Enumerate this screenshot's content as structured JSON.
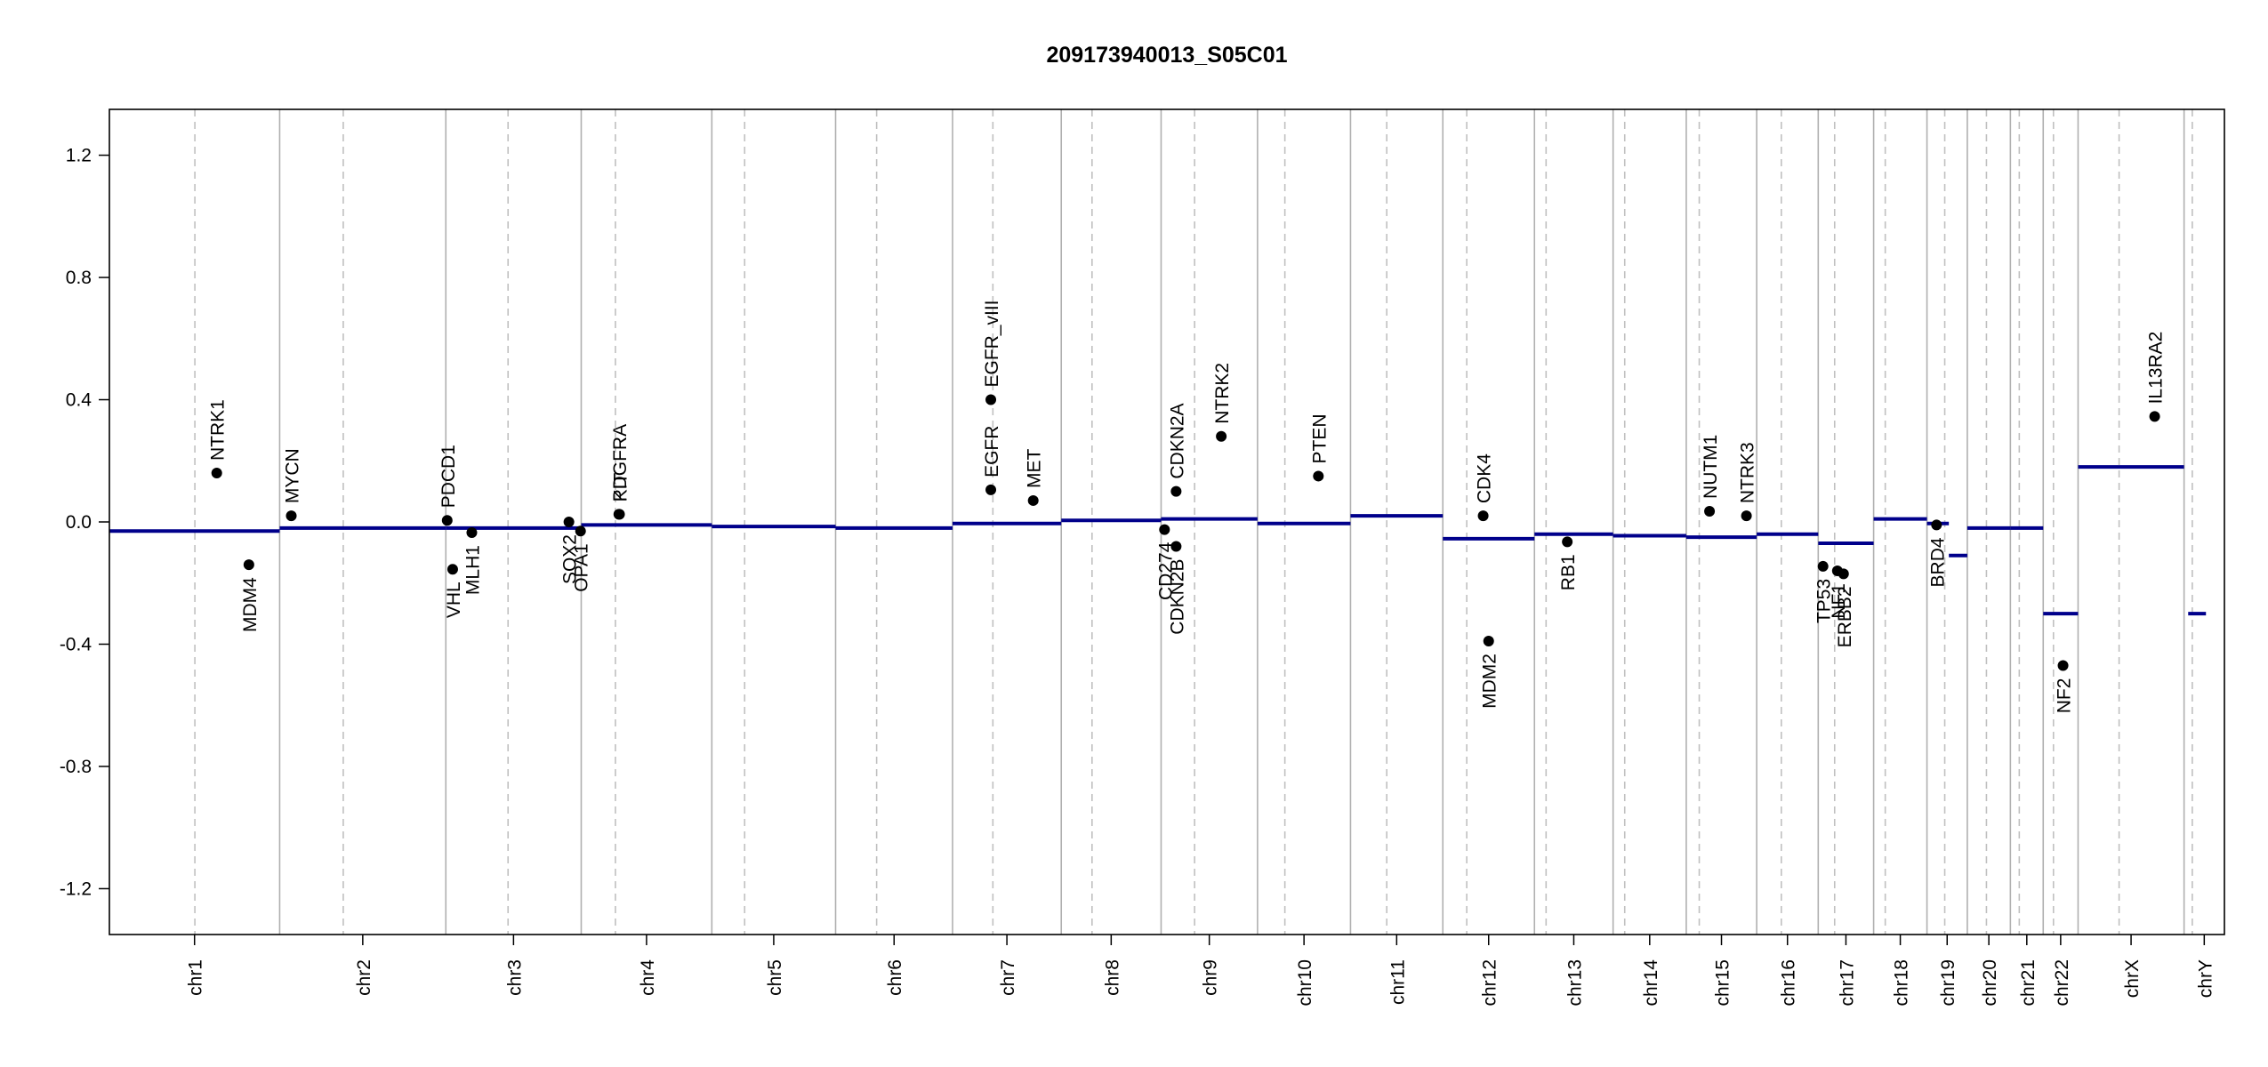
{
  "chart_data": {
    "type": "genome-segments",
    "title": "209173940013_S05C01",
    "xlim": [
      0,
      3093
    ],
    "ylim": [
      -1.35,
      1.35
    ],
    "yticks": [
      -1.2,
      -0.8,
      -0.4,
      {
        "value": 0,
        "label": "0.0"
      },
      0.4,
      0.8,
      1.2
    ],
    "segment_color": "#00008b",
    "point_color": "#000000",
    "chromosomes": [
      {
        "name": "chr1",
        "start": 0,
        "centromere": 125
      },
      {
        "name": "chr2",
        "start": 249,
        "centromere": 342
      },
      {
        "name": "chr3",
        "start": 492,
        "centromere": 583
      },
      {
        "name": "chr4",
        "start": 690,
        "centromere": 740
      },
      {
        "name": "chr5",
        "start": 881,
        "centromere": 929
      },
      {
        "name": "chr6",
        "start": 1062,
        "centromere": 1122
      },
      {
        "name": "chr7",
        "start": 1233,
        "centromere": 1292
      },
      {
        "name": "chr8",
        "start": 1392,
        "centromere": 1437
      },
      {
        "name": "chr9",
        "start": 1538,
        "centromere": 1587
      },
      {
        "name": "chr10",
        "start": 1679,
        "centromere": 1719
      },
      {
        "name": "chr11",
        "start": 1815,
        "centromere": 1868
      },
      {
        "name": "chr12",
        "start": 1950,
        "centromere": 1985
      },
      {
        "name": "chr13",
        "start": 2084,
        "centromere": 2101
      },
      {
        "name": "chr14",
        "start": 2199,
        "centromere": 2216
      },
      {
        "name": "chr15",
        "start": 2306,
        "centromere": 2325
      },
      {
        "name": "chr16",
        "start": 2409,
        "centromere": 2445
      },
      {
        "name": "chr17",
        "start": 2499,
        "centromere": 2523
      },
      {
        "name": "chr18",
        "start": 2580,
        "centromere": 2597
      },
      {
        "name": "chr19",
        "start": 2658,
        "centromere": 2684
      },
      {
        "name": "chr20",
        "start": 2717,
        "centromere": 2745
      },
      {
        "name": "chr21",
        "start": 2780,
        "centromere": 2793
      },
      {
        "name": "chr22",
        "start": 2828,
        "centromere": 2843
      },
      {
        "name": "chrX",
        "start": 2879,
        "centromere": 2939
      },
      {
        "name": "chrY",
        "start": 3034,
        "centromere": 3046
      }
    ],
    "segments": [
      {
        "start": 0,
        "end": 249,
        "value": -0.03
      },
      {
        "start": 249,
        "end": 492,
        "value": -0.02
      },
      {
        "start": 492,
        "end": 690,
        "value": -0.02
      },
      {
        "start": 690,
        "end": 881,
        "value": -0.01
      },
      {
        "start": 881,
        "end": 1062,
        "value": -0.015
      },
      {
        "start": 1062,
        "end": 1233,
        "value": -0.02
      },
      {
        "start": 1233,
        "end": 1392,
        "value": -0.005
      },
      {
        "start": 1392,
        "end": 1538,
        "value": 0.005
      },
      {
        "start": 1538,
        "end": 1679,
        "value": 0.01
      },
      {
        "start": 1679,
        "end": 1815,
        "value": -0.005
      },
      {
        "start": 1815,
        "end": 1950,
        "value": 0.02
      },
      {
        "start": 1950,
        "end": 2084,
        "value": -0.055
      },
      {
        "start": 2084,
        "end": 2199,
        "value": -0.04
      },
      {
        "start": 2199,
        "end": 2306,
        "value": -0.045
      },
      {
        "start": 2306,
        "end": 2409,
        "value": -0.05
      },
      {
        "start": 2409,
        "end": 2499,
        "value": -0.04
      },
      {
        "start": 2499,
        "end": 2580,
        "value": -0.07
      },
      {
        "start": 2580,
        "end": 2658,
        "value": 0.01
      },
      {
        "start": 2658,
        "end": 2690,
        "value": -0.005
      },
      {
        "start": 2690,
        "end": 2717,
        "value": -0.11
      },
      {
        "start": 2717,
        "end": 2780,
        "value": -0.02
      },
      {
        "start": 2780,
        "end": 2828,
        "value": -0.02
      },
      {
        "start": 2828,
        "end": 2879,
        "value": -0.3
      },
      {
        "start": 2879,
        "end": 3034,
        "value": 0.18
      },
      {
        "start": 3040,
        "end": 3066,
        "value": -0.3
      }
    ],
    "genes": [
      {
        "name": "NTRK1",
        "x": 157,
        "y": 0.16
      },
      {
        "name": "MDM4",
        "x": 204,
        "y": -0.14
      },
      {
        "name": "MYCN",
        "x": 266,
        "y": 0.02
      },
      {
        "name": "PDCD1",
        "x": 494,
        "y": 0.005
      },
      {
        "name": "VHL",
        "x": 502,
        "y": -0.155
      },
      {
        "name": "MLH1",
        "x": 530,
        "y": -0.035
      },
      {
        "name": "SOX2",
        "x": 672,
        "y": 0
      },
      {
        "name": "OPA1",
        "x": 689,
        "y": -0.03
      },
      {
        "name": "PDGFRA",
        "x": 745,
        "y": 0.025
      },
      {
        "name": "KIT",
        "x": 746,
        "y": 0.025
      },
      {
        "name": "EGFR",
        "x": 1289,
        "y": 0.105
      },
      {
        "name": "EGFR_vIII",
        "x": 1289,
        "y": 0.4
      },
      {
        "name": "MET",
        "x": 1351,
        "y": 0.07
      },
      {
        "name": "CDKN2A",
        "x": 1560,
        "y": 0.1
      },
      {
        "name": "CD274",
        "x": 1543,
        "y": -0.025
      },
      {
        "name": "CDKN2B",
        "x": 1560,
        "y": -0.08
      },
      {
        "name": "NTRK2",
        "x": 1626,
        "y": 0.28
      },
      {
        "name": "PTEN",
        "x": 1768,
        "y": 0.15
      },
      {
        "name": "CDK4",
        "x": 2009,
        "y": 0.02
      },
      {
        "name": "MDM2",
        "x": 2017,
        "y": -0.39
      },
      {
        "name": "RB1",
        "x": 2132,
        "y": -0.065
      },
      {
        "name": "NUTM1",
        "x": 2340,
        "y": 0.035
      },
      {
        "name": "NTRK3",
        "x": 2394,
        "y": 0.02
      },
      {
        "name": "TP53",
        "x": 2506,
        "y": -0.145
      },
      {
        "name": "NF1",
        "x": 2527,
        "y": -0.16
      },
      {
        "name": "ERBB2",
        "x": 2536,
        "y": -0.17
      },
      {
        "name": "BRD4",
        "x": 2672,
        "y": -0.01
      },
      {
        "name": "NF2",
        "x": 2857,
        "y": -0.47
      },
      {
        "name": "IL13RA2",
        "x": 2991,
        "y": 0.345
      }
    ]
  }
}
